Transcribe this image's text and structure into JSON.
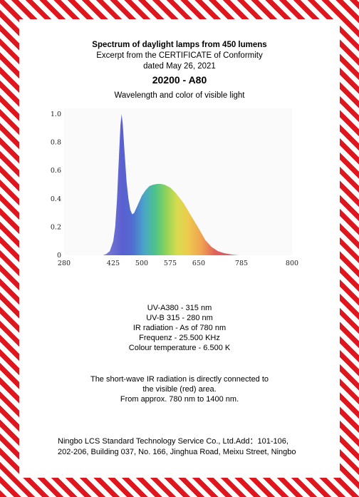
{
  "header": {
    "title": "Spectrum of daylight lamps from 450 lumens",
    "subtitle_line1": "Excerpt from the CERTIFICATE of Conformity",
    "subtitle_line2": "dated May 26, 2021",
    "model": "20200 - A80",
    "chart_heading": "Wavelength and color of visible light"
  },
  "specs": [
    "UV-A380 - 315 nm",
    "UV-B 315 - 280 nm",
    "IR radiation  - As of 780 nm",
    "Frequenz - 25.500 KHz",
    "Colour temperature - 6.500 K"
  ],
  "note": [
    "The short-wave IR radiation is directly connected to",
    "the visible (red) area.",
    "From approx. 780 nm to 1400 nm."
  ],
  "footer": {
    "line1": "Ningbo LCS Standard Technology Service Co., Ltd.Add：101-106,",
    "line2": "202-206, Building 037, No. 166, Jinghua Road, Meixu Street, Ningbo"
  },
  "colors": {
    "stripe": "#e0161e"
  },
  "chart_data": {
    "type": "area",
    "title": "Wavelength and color of visible light",
    "xlabel": "",
    "ylabel": "",
    "x_ticks": [
      "280",
      "425",
      "500",
      "575",
      "650",
      "785",
      "800"
    ],
    "y_ticks": [
      "0",
      "0.2",
      "0.4",
      "0.6",
      "0.8",
      "1.0"
    ],
    "ylim": [
      0,
      1.0
    ],
    "x": [
      395,
      405,
      415,
      425,
      430,
      435,
      440,
      444,
      447,
      450,
      455,
      460,
      465,
      470,
      475,
      480,
      490,
      500,
      510,
      520,
      530,
      540,
      550,
      560,
      575,
      590,
      610,
      630,
      650,
      670,
      690,
      710,
      730,
      750,
      770,
      780
    ],
    "values": [
      0.0,
      0.01,
      0.03,
      0.1,
      0.2,
      0.4,
      0.7,
      0.92,
      1.0,
      0.93,
      0.72,
      0.52,
      0.4,
      0.32,
      0.29,
      0.3,
      0.36,
      0.42,
      0.46,
      0.49,
      0.5,
      0.505,
      0.505,
      0.5,
      0.48,
      0.44,
      0.37,
      0.28,
      0.19,
      0.11,
      0.06,
      0.03,
      0.015,
      0.007,
      0.002,
      0.0
    ],
    "grid": false
  }
}
